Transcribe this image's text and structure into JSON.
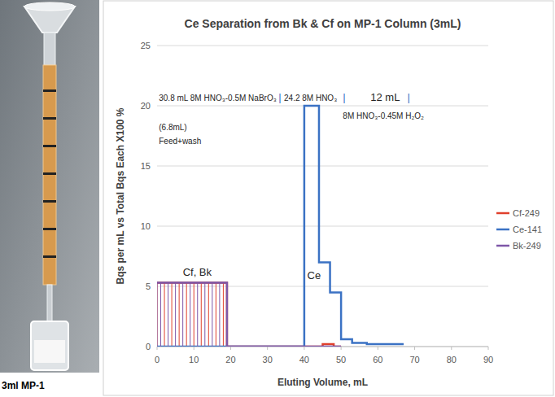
{
  "chart_data": {
    "type": "line",
    "title": "Ce Separation from Bk & Cf on MP-1 Column (3mL)",
    "x_label": "Eluting Volume, mL",
    "y_label": "Bqs per mL vs Total Bqs Each X100 %",
    "xlim": [
      0,
      90
    ],
    "xticks": [
      0,
      10,
      20,
      30,
      40,
      50,
      60,
      70,
      80,
      90
    ],
    "ylim": [
      0,
      25
    ],
    "yticks": [
      0,
      5,
      10,
      15,
      20,
      25
    ],
    "grid": true,
    "legend": "right",
    "line_style": "step",
    "series": [
      {
        "name": "Cf-249",
        "color": "#e0402c",
        "marker": "dropline",
        "x": [
          0,
          2,
          4,
          6,
          8,
          10,
          12,
          14,
          16,
          18,
          19,
          45,
          48,
          50
        ],
        "values": [
          5.3,
          5.3,
          5.3,
          5.3,
          5.3,
          5.3,
          5.3,
          5.3,
          5.3,
          5.3,
          0,
          0.2,
          0,
          0
        ]
      },
      {
        "name": "Ce-141",
        "color": "#3b72c4",
        "marker": "none",
        "x": [
          0,
          40,
          44,
          47,
          50,
          53,
          57,
          67
        ],
        "values": [
          0,
          20,
          7,
          4.5,
          0.6,
          0.3,
          0.2,
          0.2
        ]
      },
      {
        "name": "Bk-249",
        "color": "#7e57a8",
        "marker": "dropline",
        "x": [
          0,
          1,
          3,
          5,
          7,
          9,
          11,
          13,
          15,
          17,
          19,
          50
        ],
        "values": [
          5.3,
          5.3,
          5.3,
          5.3,
          5.3,
          5.3,
          5.3,
          5.3,
          5.3,
          5.3,
          0,
          0
        ]
      }
    ],
    "annotations": [
      {
        "text": "30.8 mL 8M HNO₃-0.5M NaBrO₃",
        "x": 0.5,
        "y": 20.4
      },
      {
        "text": "|",
        "x": 33,
        "y": 20.4,
        "color": "#3b72c4"
      },
      {
        "text": "24.2 8M HNO₃",
        "x": 34.5,
        "y": 20.4
      },
      {
        "text": "|",
        "x": 50.5,
        "y": 20.4,
        "color": "#3b72c4"
      },
      {
        "text": "12 mL",
        "x": 58,
        "y": 20.4
      },
      {
        "text": "|",
        "x": 68,
        "y": 20.4,
        "color": "#3b72c4"
      },
      {
        "text": "8M HNO₃-0.45M H₂O₂",
        "x": 50.5,
        "y": 18.9
      },
      {
        "text": "(6.8mL)",
        "x": 0.5,
        "y": 18
      },
      {
        "text": "Feed+wash",
        "x": 0.5,
        "y": 16.8
      },
      {
        "text": "Cf, Bk",
        "x": 7,
        "y": 5.9
      },
      {
        "text": "Ce",
        "x": 40.8,
        "y": 5.6
      }
    ],
    "photo_caption": "3ml MP-1"
  }
}
